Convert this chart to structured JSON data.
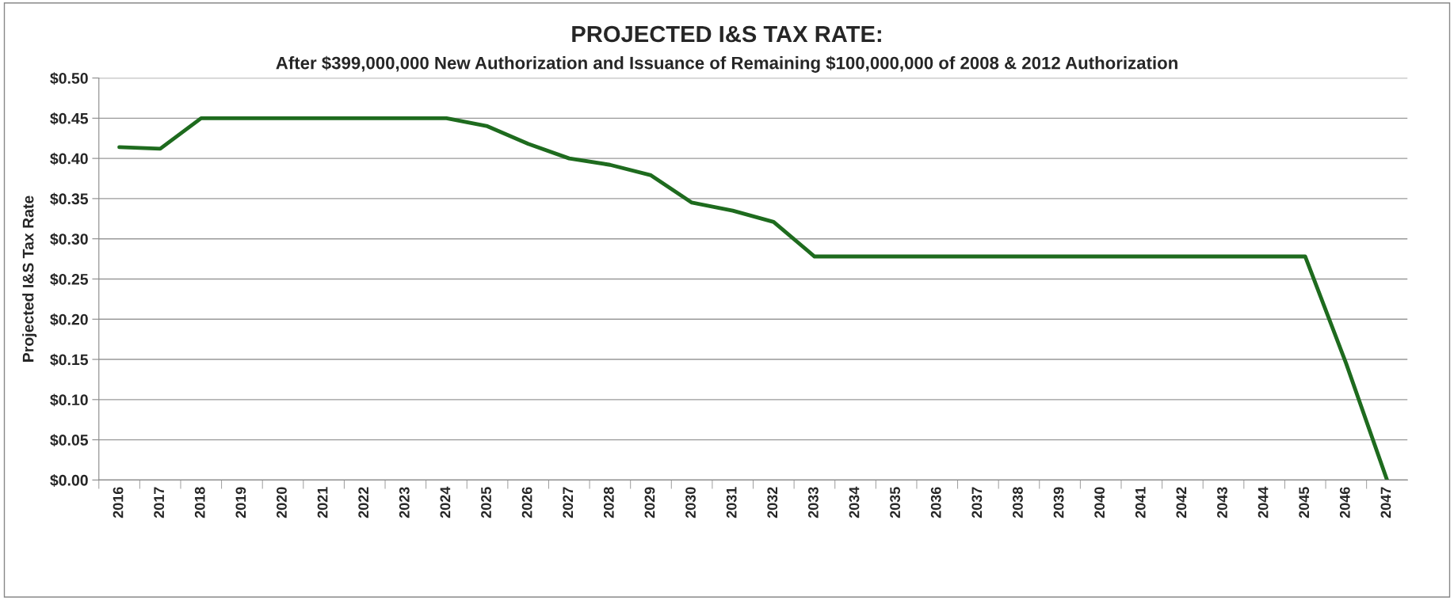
{
  "chart_data": {
    "type": "line",
    "title": "PROJECTED I&S TAX RATE:",
    "subtitle": "After $399,000,000 New Authorization and Issuance of Remaining $100,000,000 of 2008 & 2012 Authorization",
    "ylabel": "Projected I&S Tax Rate",
    "categories": [
      "2016",
      "2017",
      "2018",
      "2019",
      "2020",
      "2021",
      "2022",
      "2023",
      "2024",
      "2025",
      "2026",
      "2027",
      "2028",
      "2029",
      "2030",
      "2031",
      "2032",
      "2033",
      "2034",
      "2035",
      "2036",
      "2037",
      "2038",
      "2039",
      "2040",
      "2041",
      "2042",
      "2043",
      "2044",
      "2045",
      "2046",
      "2047"
    ],
    "series": [
      {
        "color": "#1e6b1e",
        "values": [
          0.414,
          0.412,
          0.45,
          0.45,
          0.45,
          0.45,
          0.45,
          0.45,
          0.45,
          0.44,
          0.418,
          0.4,
          0.392,
          0.379,
          0.345,
          0.335,
          0.321,
          0.278,
          0.278,
          0.278,
          0.278,
          0.278,
          0.278,
          0.278,
          0.278,
          0.278,
          0.278,
          0.278,
          0.278,
          0.278,
          0.145,
          0
        ]
      }
    ],
    "ylim": [
      0,
      0.5
    ],
    "yticks": [
      {
        "value": 0,
        "label": "$0.00"
      },
      {
        "value": 0.05,
        "label": "$0.05"
      },
      {
        "value": 0.1,
        "label": "$0.10"
      },
      {
        "value": 0.15,
        "label": "$0.15"
      },
      {
        "value": 0.2,
        "label": "$0.20"
      },
      {
        "value": 0.25,
        "label": "$0.25"
      },
      {
        "value": 0.3,
        "label": "$0.30"
      },
      {
        "value": 0.35,
        "label": "$0.35"
      },
      {
        "value": 0.4,
        "label": "$0.40"
      },
      {
        "value": 0.45,
        "label": "$0.45"
      },
      {
        "value": 0.5,
        "label": "$0.50"
      }
    ],
    "grid": "y",
    "legend": false,
    "marker": "none",
    "line_style": "solid"
  }
}
